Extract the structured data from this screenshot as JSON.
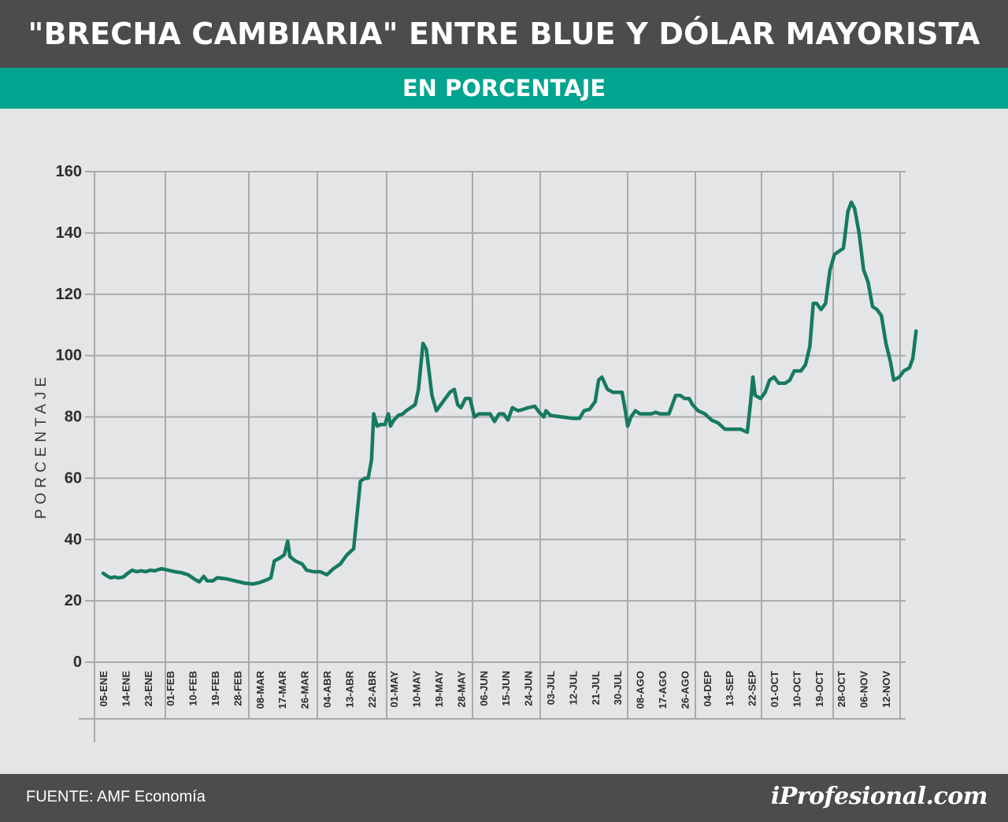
{
  "header": {
    "title": "\"BRECHA CAMBIARIA\" ENTRE BLUE Y DÓLAR MAYORISTA",
    "subtitle": "EN PORCENTAJE"
  },
  "footer": {
    "source": "FUENTE: AMF Economía",
    "logo": "iProfesional.com"
  },
  "colors": {
    "header_bg": "#4b4c4e",
    "subheader_bg": "#00a48f",
    "line": "#167a60",
    "grid": "#a9aaac",
    "plot_bg": "#e4e5e7"
  },
  "chart_data": {
    "type": "line",
    "title": "\"BRECHA CAMBIARIA\" ENTRE BLUE Y DÓLAR MAYORISTA",
    "subtitle": "EN PORCENTAJE",
    "ylabel": "PORCENTAJE",
    "xlabel": "",
    "ylim": [
      0,
      160
    ],
    "yticks": [
      "0",
      "20",
      "40",
      "60",
      "80",
      "100",
      "120",
      "140",
      "160"
    ],
    "grid": true,
    "categories": [
      "05-ENE",
      "14-ENE",
      "23-ENE",
      "01-FEB",
      "10-FEB",
      "19-FEB",
      "28-FEB",
      "08-MAR",
      "17-MAR",
      "26-MAR",
      "04-ABR",
      "13-ABR",
      "22-ABR",
      "01-MAY",
      "10-MAY",
      "19-MAY",
      "28-MAY",
      "06-JUN",
      "15-JUN",
      "24-JUN",
      "03-JUL",
      "12-JUL",
      "21-JUL",
      "30-JUL",
      "08-AGO",
      "17-AGO",
      "26-AGO",
      "04-DEP",
      "13-SEP",
      "22-SEP",
      "01-OCT",
      "10-OCT",
      "19-OCT",
      "28-OCT",
      "06-NOV",
      "12-NOV"
    ],
    "series": [
      {
        "values": [
          [
            0.0,
            29
          ],
          [
            0.2,
            28
          ],
          [
            0.35,
            27.5
          ],
          [
            0.5,
            27.8
          ],
          [
            0.7,
            27.5
          ],
          [
            0.9,
            27.8
          ],
          [
            1.1,
            29
          ],
          [
            1.3,
            30
          ],
          [
            1.5,
            29.5
          ],
          [
            1.7,
            29.8
          ],
          [
            1.9,
            29.5
          ],
          [
            2.1,
            30
          ],
          [
            2.3,
            29.8
          ],
          [
            2.6,
            30.5
          ],
          [
            2.9,
            30
          ],
          [
            3.2,
            29.5
          ],
          [
            3.5,
            29.2
          ],
          [
            3.8,
            28.5
          ],
          [
            4.1,
            27
          ],
          [
            4.3,
            26.2
          ],
          [
            4.5,
            28
          ],
          [
            4.65,
            26.5
          ],
          [
            4.9,
            26.5
          ],
          [
            5.1,
            27.5
          ],
          [
            5.5,
            27.2
          ],
          [
            5.9,
            26.5
          ],
          [
            6.3,
            25.8
          ],
          [
            6.7,
            25.5
          ],
          [
            7.0,
            26
          ],
          [
            7.3,
            26.8
          ],
          [
            7.5,
            27.5
          ],
          [
            7.65,
            33
          ],
          [
            7.9,
            34
          ],
          [
            8.1,
            35
          ],
          [
            8.25,
            39.5
          ],
          [
            8.35,
            34.5
          ],
          [
            8.6,
            33
          ],
          [
            8.9,
            32
          ],
          [
            9.1,
            30
          ],
          [
            9.4,
            29.5
          ],
          [
            9.7,
            29.5
          ],
          [
            10.0,
            28.5
          ],
          [
            10.3,
            30.5
          ],
          [
            10.6,
            32
          ],
          [
            10.9,
            35
          ],
          [
            11.2,
            37
          ],
          [
            11.5,
            59
          ],
          [
            11.7,
            60
          ],
          [
            11.85,
            60
          ],
          [
            12.0,
            66
          ],
          [
            12.1,
            81
          ],
          [
            12.25,
            77
          ],
          [
            12.4,
            77.5
          ],
          [
            12.6,
            77.5
          ],
          [
            12.75,
            81
          ],
          [
            12.85,
            77
          ],
          [
            13.0,
            79
          ],
          [
            13.2,
            80.5
          ],
          [
            13.4,
            81
          ],
          [
            13.55,
            82
          ],
          [
            13.75,
            83
          ],
          [
            13.95,
            84
          ],
          [
            14.1,
            89
          ],
          [
            14.3,
            104
          ],
          [
            14.45,
            102
          ],
          [
            14.7,
            87
          ],
          [
            14.9,
            82
          ],
          [
            15.1,
            84
          ],
          [
            15.3,
            86
          ],
          [
            15.5,
            88
          ],
          [
            15.7,
            89
          ],
          [
            15.85,
            84
          ],
          [
            16.0,
            83
          ],
          [
            16.2,
            86
          ],
          [
            16.4,
            86
          ],
          [
            16.6,
            80
          ],
          [
            16.8,
            81
          ],
          [
            17.0,
            81
          ],
          [
            17.3,
            81
          ],
          [
            17.5,
            78.5
          ],
          [
            17.7,
            81
          ],
          [
            17.9,
            81
          ],
          [
            18.1,
            79
          ],
          [
            18.3,
            83
          ],
          [
            18.55,
            82
          ],
          [
            18.8,
            82.5
          ],
          [
            19.0,
            83
          ],
          [
            19.3,
            83.5
          ],
          [
            19.5,
            81.5
          ],
          [
            19.7,
            80
          ],
          [
            19.8,
            82
          ],
          [
            20.0,
            80.5
          ],
          [
            20.5,
            80
          ],
          [
            21.0,
            79.5
          ],
          [
            21.3,
            79.5
          ],
          [
            21.5,
            82
          ],
          [
            21.75,
            82.5
          ],
          [
            22.0,
            85
          ],
          [
            22.15,
            92
          ],
          [
            22.3,
            93
          ],
          [
            22.55,
            89
          ],
          [
            22.8,
            88
          ],
          [
            23.0,
            88
          ],
          [
            23.2,
            88
          ],
          [
            23.35,
            82
          ],
          [
            23.45,
            77
          ],
          [
            23.6,
            80
          ],
          [
            23.8,
            82
          ],
          [
            24.0,
            81
          ],
          [
            24.3,
            81
          ],
          [
            24.5,
            81
          ],
          [
            24.7,
            81.5
          ],
          [
            24.9,
            81
          ],
          [
            25.1,
            81
          ],
          [
            25.3,
            81
          ],
          [
            25.45,
            84
          ],
          [
            25.6,
            87
          ],
          [
            25.8,
            87
          ],
          [
            26.0,
            86
          ],
          [
            26.2,
            86
          ],
          [
            26.35,
            84
          ],
          [
            26.6,
            82
          ],
          [
            26.9,
            81
          ],
          [
            27.2,
            79
          ],
          [
            27.5,
            78
          ],
          [
            27.8,
            76
          ],
          [
            28.1,
            76
          ],
          [
            28.5,
            76
          ],
          [
            28.8,
            75
          ],
          [
            28.95,
            85
          ],
          [
            29.05,
            93
          ],
          [
            29.15,
            87
          ],
          [
            29.4,
            86
          ],
          [
            29.6,
            88
          ],
          [
            29.8,
            92
          ],
          [
            30.0,
            93
          ],
          [
            30.2,
            91
          ],
          [
            30.5,
            91
          ],
          [
            30.7,
            92
          ],
          [
            30.9,
            95
          ],
          [
            31.2,
            95
          ],
          [
            31.4,
            97
          ],
          [
            31.6,
            103
          ],
          [
            31.75,
            117
          ],
          [
            31.9,
            117
          ],
          [
            32.1,
            115
          ],
          [
            32.3,
            117
          ],
          [
            32.5,
            128
          ],
          [
            32.7,
            133
          ],
          [
            32.9,
            134
          ],
          [
            33.1,
            135
          ],
          [
            33.3,
            147
          ],
          [
            33.45,
            150
          ],
          [
            33.6,
            148
          ],
          [
            33.8,
            140
          ],
          [
            34.0,
            128
          ],
          [
            34.2,
            124
          ],
          [
            34.4,
            116
          ],
          [
            34.6,
            115
          ],
          [
            34.8,
            113
          ],
          [
            35.0,
            104
          ],
          [
            35.2,
            98
          ],
          [
            35.35,
            92
          ],
          [
            35.6,
            93
          ],
          [
            35.8,
            95
          ],
          [
            36.05,
            96
          ],
          [
            36.2,
            99
          ],
          [
            36.35,
            108
          ]
        ]
      }
    ]
  }
}
